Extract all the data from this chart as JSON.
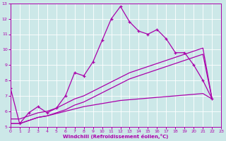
{
  "xlabel": "Windchill (Refroidissement éolien,°C)",
  "bg_color": "#cce8e8",
  "line_color": "#aa00aa",
  "grid_color": "#ffffff",
  "xlim": [
    0,
    23
  ],
  "ylim": [
    5,
    13
  ],
  "xticks": [
    0,
    1,
    2,
    3,
    4,
    5,
    6,
    7,
    8,
    9,
    10,
    11,
    12,
    13,
    14,
    15,
    16,
    17,
    18,
    19,
    20,
    21,
    22,
    23
  ],
  "yticks": [
    5,
    6,
    7,
    8,
    9,
    10,
    11,
    12,
    13
  ],
  "s1_x": [
    0,
    1,
    2,
    3,
    4,
    5,
    6,
    7,
    8,
    9,
    10,
    11,
    12,
    13,
    14,
    15,
    16,
    17,
    18,
    19,
    20,
    21,
    22
  ],
  "s1_y": [
    7.5,
    5.2,
    5.9,
    6.3,
    5.9,
    6.2,
    7.0,
    8.5,
    8.3,
    9.2,
    10.6,
    12.0,
    12.8,
    11.8,
    11.2,
    11.0,
    11.3,
    10.7,
    9.8,
    9.8,
    9.0,
    8.0,
    6.8
  ],
  "s2_x": [
    0,
    1,
    2,
    3,
    4,
    5,
    6,
    7,
    8,
    9,
    10,
    11,
    12,
    13,
    14,
    15,
    16,
    17,
    18,
    19,
    20,
    21,
    22
  ],
  "s2_y": [
    5.2,
    5.2,
    5.4,
    5.6,
    5.7,
    5.9,
    6.1,
    6.4,
    6.6,
    6.9,
    7.2,
    7.5,
    7.8,
    8.1,
    8.3,
    8.5,
    8.7,
    8.9,
    9.1,
    9.3,
    9.5,
    9.7,
    6.8
  ],
  "s3_x": [
    0,
    1,
    2,
    3,
    4,
    5,
    6,
    7,
    8,
    9,
    10,
    11,
    12,
    13,
    14,
    15,
    16,
    17,
    18,
    19,
    20,
    21,
    22
  ],
  "s3_y": [
    5.5,
    5.5,
    5.7,
    5.9,
    6.0,
    6.2,
    6.5,
    6.8,
    7.0,
    7.3,
    7.6,
    7.9,
    8.2,
    8.5,
    8.7,
    8.9,
    9.1,
    9.3,
    9.5,
    9.7,
    9.9,
    10.1,
    6.8
  ],
  "s4_x": [
    0,
    1,
    2,
    3,
    4,
    5,
    6,
    7,
    8,
    9,
    10,
    11,
    12,
    13,
    14,
    15,
    16,
    17,
    18,
    19,
    20,
    21,
    22
  ],
  "s4_y": [
    5.2,
    5.2,
    5.4,
    5.6,
    5.7,
    5.85,
    6.0,
    6.15,
    6.3,
    6.4,
    6.5,
    6.6,
    6.7,
    6.75,
    6.8,
    6.85,
    6.9,
    6.95,
    7.0,
    7.05,
    7.1,
    7.15,
    6.8
  ]
}
